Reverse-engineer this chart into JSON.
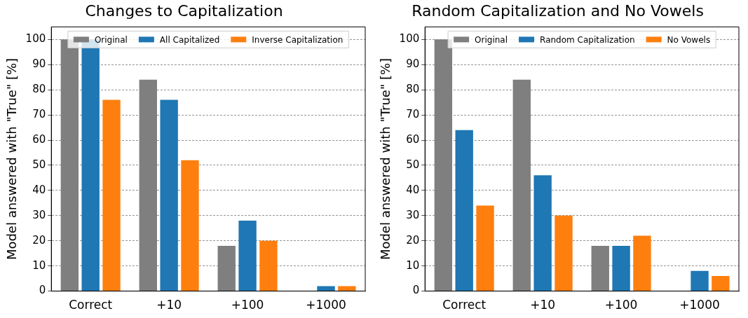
{
  "chart_data": [
    {
      "type": "bar",
      "title": "Changes to Capitalization",
      "ylabel": "Model answered with \"True\" [%]",
      "categories": [
        "Correct",
        "+10",
        "+100",
        "+1000"
      ],
      "series": [
        {
          "name": "Original",
          "color": "#7f7f7f",
          "values": [
            100,
            84,
            18,
            0
          ]
        },
        {
          "name": "All Capitalized",
          "color": "#1f77b4",
          "values": [
            100,
            76,
            28,
            2
          ]
        },
        {
          "name": "Inverse Capitalization",
          "color": "#ff7f0e",
          "values": [
            76,
            52,
            20,
            2
          ]
        }
      ],
      "ylim": [
        0,
        105
      ],
      "yticks": [
        0,
        10,
        20,
        30,
        40,
        50,
        60,
        70,
        80,
        90,
        100
      ],
      "grid": "y",
      "legend": "top"
    },
    {
      "type": "bar",
      "title": "Random Capitalization and No Vowels",
      "ylabel": "Model answered with \"True\" [%]",
      "categories": [
        "Correct",
        "+10",
        "+100",
        "+1000"
      ],
      "series": [
        {
          "name": "Original",
          "color": "#7f7f7f",
          "values": [
            100,
            84,
            18,
            0
          ]
        },
        {
          "name": "Random Capitalization",
          "color": "#1f77b4",
          "values": [
            64,
            46,
            18,
            8
          ]
        },
        {
          "name": "No Vowels",
          "color": "#ff7f0e",
          "values": [
            34,
            30,
            22,
            6
          ]
        }
      ],
      "ylim": [
        0,
        105
      ],
      "yticks": [
        0,
        10,
        20,
        30,
        40,
        50,
        60,
        70,
        80,
        90,
        100
      ],
      "grid": "y",
      "legend": "top"
    }
  ]
}
